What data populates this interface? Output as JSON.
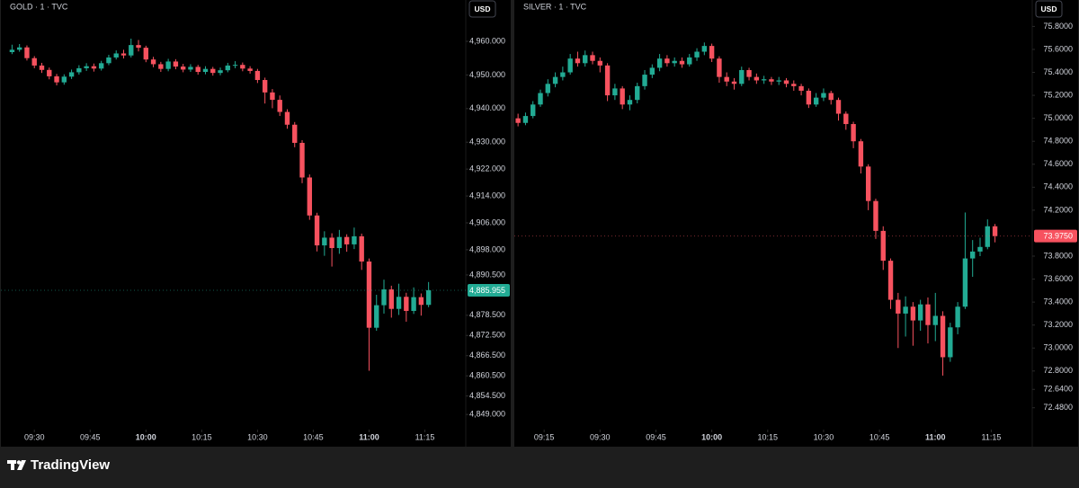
{
  "brand": "TradingView",
  "chart_data": [
    {
      "type": "candlestick",
      "title": "GOLD · 1 · TVC",
      "currency": "USD",
      "up_color": "#22ab94",
      "down_color": "#f7525f",
      "xlim": [
        "09:21",
        "11:26"
      ],
      "xticks": [
        "09:30",
        "09:45",
        "10:00",
        "10:15",
        "10:30",
        "10:45",
        "11:00",
        "11:15"
      ],
      "ylim": [
        4844.5,
        4972.3
      ],
      "yticks": [
        {
          "value": 4960,
          "label": "4,960.000"
        },
        {
          "value": 4950,
          "label": "4,950.000"
        },
        {
          "value": 4940,
          "label": "4,940.000"
        },
        {
          "value": 4930,
          "label": "4,930.000"
        },
        {
          "value": 4922,
          "label": "4,922.000"
        },
        {
          "value": 4914,
          "label": "4,914.000"
        },
        {
          "value": 4906,
          "label": "4,906.000"
        },
        {
          "value": 4898,
          "label": "4,898.000"
        },
        {
          "value": 4890.5,
          "label": "4,890.500"
        },
        {
          "value": 4878.5,
          "label": "4,878.500"
        },
        {
          "value": 4872.5,
          "label": "4,872.500"
        },
        {
          "value": 4866.5,
          "label": "4,866.500"
        },
        {
          "value": 4860.5,
          "label": "4,860.500"
        },
        {
          "value": 4854.5,
          "label": "4,854.500"
        },
        {
          "value": 4849,
          "label": "4,849.000"
        }
      ],
      "last_price": {
        "value": 4885.955,
        "label": "4,885.955"
      },
      "x": [
        "09:24",
        "09:26",
        "09:28",
        "09:30",
        "09:32",
        "09:34",
        "09:36",
        "09:38",
        "09:40",
        "09:42",
        "09:44",
        "09:46",
        "09:48",
        "09:50",
        "09:52",
        "09:54",
        "09:56",
        "09:58",
        "10:00",
        "10:02",
        "10:04",
        "10:06",
        "10:08",
        "10:10",
        "10:12",
        "10:14",
        "10:16",
        "10:18",
        "10:20",
        "10:22",
        "10:24",
        "10:26",
        "10:28",
        "10:30",
        "10:32",
        "10:34",
        "10:36",
        "10:38",
        "10:40",
        "10:42",
        "10:44",
        "10:46",
        "10:48",
        "10:50",
        "10:52",
        "10:54",
        "10:56",
        "10:58",
        "11:00",
        "11:02",
        "11:04",
        "11:06",
        "11:08",
        "11:10",
        "11:12",
        "11:14",
        "11:16"
      ],
      "open": [
        4956.8,
        4957.5,
        4958.2,
        4955.0,
        4952.8,
        4951.5,
        4949.6,
        4947.8,
        4949.5,
        4950.8,
        4952.0,
        4952.6,
        4951.9,
        4953.5,
        4955.2,
        4956.4,
        4955.8,
        4958.9,
        4958.1,
        4954.6,
        4953.2,
        4951.8,
        4954.0,
        4952.5,
        4951.6,
        4952.4,
        4950.9,
        4951.8,
        4950.6,
        4951.4,
        4952.8,
        4953.0,
        4951.9,
        4951.2,
        4948.5,
        4944.8,
        4942.6,
        4939.0,
        4935.2,
        4929.8,
        4919.5,
        4908.2,
        4899.3,
        4901.6,
        4898.5,
        4901.8,
        4899.6,
        4902.0,
        4894.5,
        4874.8,
        4881.5,
        4886.2,
        4880.4,
        4884.0,
        4879.8,
        4883.9,
        4881.6
      ],
      "high": [
        4959.0,
        4959.2,
        4958.8,
        4955.6,
        4953.6,
        4952.2,
        4950.3,
        4950.2,
        4951.6,
        4952.9,
        4953.5,
        4953.4,
        4954.2,
        4956.0,
        4957.3,
        4957.5,
        4960.8,
        4960.4,
        4958.7,
        4955.4,
        4953.9,
        4954.8,
        4954.7,
        4953.3,
        4953.2,
        4953.0,
        4952.6,
        4952.4,
        4952.2,
        4953.6,
        4954.1,
        4953.7,
        4952.6,
        4951.8,
        4949.2,
        4945.8,
        4943.9,
        4939.8,
        4936.0,
        4930.6,
        4920.4,
        4909.0,
        4903.5,
        4902.9,
        4903.9,
        4902.6,
        4904.6,
        4902.8,
        4895.4,
        4884.6,
        4889.1,
        4887.3,
        4887.9,
        4885.2,
        4886.8,
        4885.0,
        4888.4
      ],
      "low": [
        4956.2,
        4956.9,
        4954.3,
        4952.0,
        4950.6,
        4948.7,
        4946.9,
        4947.1,
        4948.8,
        4950.1,
        4951.2,
        4951.0,
        4951.3,
        4952.9,
        4954.6,
        4954.9,
        4955.2,
        4957.0,
        4953.8,
        4952.3,
        4950.9,
        4951.1,
        4951.7,
        4950.8,
        4950.9,
        4950.1,
        4950.2,
        4949.8,
        4949.9,
        4950.8,
        4952.0,
        4951.1,
        4950.4,
        4947.6,
        4941.5,
        4940.1,
        4937.8,
        4934.0,
        4928.5,
        4917.8,
        4906.9,
        4897.5,
        4896.2,
        4893.0,
        4896.8,
        4897.4,
        4898.2,
        4892.0,
        4862.0,
        4873.9,
        4879.0,
        4877.8,
        4878.6,
        4876.6,
        4878.9,
        4878.4,
        4880.9
      ],
      "close": [
        4957.5,
        4958.2,
        4955.0,
        4952.8,
        4951.5,
        4949.6,
        4947.8,
        4949.5,
        4950.8,
        4952.0,
        4952.6,
        4951.9,
        4953.5,
        4955.2,
        4956.4,
        4955.8,
        4958.9,
        4958.1,
        4954.6,
        4953.2,
        4951.8,
        4954.0,
        4952.5,
        4951.6,
        4952.4,
        4950.9,
        4951.8,
        4950.6,
        4951.4,
        4952.8,
        4953.0,
        4951.9,
        4951.2,
        4948.5,
        4944.8,
        4942.6,
        4939.0,
        4935.2,
        4929.8,
        4919.5,
        4908.2,
        4899.3,
        4901.6,
        4898.5,
        4901.8,
        4899.6,
        4902.0,
        4894.5,
        4874.8,
        4881.5,
        4886.2,
        4880.4,
        4884.0,
        4879.8,
        4883.9,
        4881.6,
        4885.955
      ]
    },
    {
      "type": "candlestick",
      "title": "SILVER · 1 · TVC",
      "currency": "USD",
      "up_color": "#22ab94",
      "down_color": "#f7525f",
      "xlim": [
        "09:07",
        "11:26"
      ],
      "xticks": [
        "09:15",
        "09:30",
        "09:45",
        "10:00",
        "10:15",
        "10:30",
        "10:45",
        "11:00",
        "11:15"
      ],
      "ylim": [
        72.29,
        76.03
      ],
      "yticks": [
        {
          "value": 75.8,
          "label": "75.8000"
        },
        {
          "value": 75.6,
          "label": "75.6000"
        },
        {
          "value": 75.4,
          "label": "75.4000"
        },
        {
          "value": 75.2,
          "label": "75.2000"
        },
        {
          "value": 75,
          "label": "75.0000"
        },
        {
          "value": 74.8,
          "label": "74.8000"
        },
        {
          "value": 74.6,
          "label": "74.6000"
        },
        {
          "value": 74.4,
          "label": "74.4000"
        },
        {
          "value": 74.2,
          "label": "74.2000"
        },
        {
          "value": 73.8,
          "label": "73.8000"
        },
        {
          "value": 73.6,
          "label": "73.6000"
        },
        {
          "value": 73.4,
          "label": "73.4000"
        },
        {
          "value": 73.2,
          "label": "73.2000"
        },
        {
          "value": 73,
          "label": "73.0000"
        },
        {
          "value": 72.8,
          "label": "72.8000"
        },
        {
          "value": 72.64,
          "label": "72.6400"
        },
        {
          "value": 72.48,
          "label": "72.4800"
        }
      ],
      "last_price": {
        "value": 73.975,
        "label": "73.9750"
      },
      "x": [
        "09:08",
        "09:10",
        "09:12",
        "09:14",
        "09:16",
        "09:18",
        "09:20",
        "09:22",
        "09:24",
        "09:26",
        "09:28",
        "09:30",
        "09:32",
        "09:34",
        "09:36",
        "09:38",
        "09:40",
        "09:42",
        "09:44",
        "09:46",
        "09:48",
        "09:50",
        "09:52",
        "09:54",
        "09:56",
        "09:58",
        "10:00",
        "10:02",
        "10:04",
        "10:06",
        "10:08",
        "10:10",
        "10:12",
        "10:14",
        "10:16",
        "10:18",
        "10:20",
        "10:22",
        "10:24",
        "10:26",
        "10:28",
        "10:30",
        "10:32",
        "10:34",
        "10:36",
        "10:38",
        "10:40",
        "10:42",
        "10:44",
        "10:46",
        "10:48",
        "10:50",
        "10:52",
        "10:54",
        "10:56",
        "10:58",
        "11:00",
        "11:02",
        "11:04",
        "11:06",
        "11:08",
        "11:10",
        "11:12",
        "11:14",
        "11:16"
      ],
      "open": [
        75.0,
        74.96,
        75.02,
        75.12,
        75.22,
        75.3,
        75.36,
        75.4,
        75.52,
        75.48,
        75.55,
        75.5,
        75.46,
        75.2,
        75.26,
        75.12,
        75.16,
        75.28,
        75.38,
        75.44,
        75.52,
        75.48,
        75.5,
        75.47,
        75.53,
        75.58,
        75.63,
        75.52,
        75.36,
        75.32,
        75.3,
        75.42,
        75.36,
        75.33,
        75.34,
        75.32,
        75.33,
        75.3,
        75.28,
        75.24,
        75.12,
        75.18,
        75.22,
        75.16,
        75.04,
        74.95,
        74.8,
        74.58,
        74.28,
        74.02,
        73.76,
        73.42,
        73.3,
        73.36,
        73.24,
        73.38,
        73.2,
        73.28,
        72.92,
        73.18,
        73.36,
        73.78,
        73.84,
        73.88,
        74.06
      ],
      "high": [
        75.04,
        75.05,
        75.15,
        75.25,
        75.34,
        75.4,
        75.45,
        75.56,
        75.58,
        75.59,
        75.58,
        75.53,
        75.48,
        75.3,
        75.28,
        75.2,
        75.31,
        75.42,
        75.47,
        75.56,
        75.55,
        75.53,
        75.53,
        75.56,
        75.61,
        75.66,
        75.65,
        75.54,
        75.4,
        75.35,
        75.45,
        75.44,
        75.39,
        75.37,
        75.36,
        75.36,
        75.35,
        75.33,
        75.3,
        75.26,
        75.22,
        75.26,
        75.24,
        75.18,
        75.06,
        74.97,
        74.82,
        74.6,
        74.3,
        74.06,
        73.78,
        73.48,
        73.45,
        73.4,
        73.42,
        73.44,
        73.48,
        73.32,
        73.22,
        73.4,
        74.18,
        73.94,
        73.96,
        74.12,
        74.08
      ],
      "low": [
        74.93,
        74.94,
        75.0,
        75.1,
        75.19,
        75.27,
        75.33,
        75.38,
        75.45,
        75.45,
        75.47,
        75.4,
        75.15,
        75.16,
        75.08,
        75.07,
        75.13,
        75.25,
        75.35,
        75.41,
        75.45,
        75.45,
        75.44,
        75.45,
        75.5,
        75.55,
        75.49,
        75.31,
        75.28,
        75.25,
        75.28,
        75.33,
        75.3,
        75.3,
        75.29,
        75.29,
        75.27,
        75.24,
        75.2,
        75.09,
        75.1,
        75.15,
        75.12,
        74.98,
        74.9,
        74.74,
        74.52,
        74.2,
        73.95,
        73.68,
        73.34,
        73.0,
        73.1,
        73.02,
        73.15,
        73.04,
        73.06,
        72.76,
        72.88,
        73.12,
        73.34,
        73.62,
        73.8,
        73.86,
        73.92
      ],
      "close": [
        74.96,
        75.02,
        75.12,
        75.22,
        75.3,
        75.36,
        75.4,
        75.52,
        75.48,
        75.55,
        75.5,
        75.46,
        75.2,
        75.26,
        75.12,
        75.16,
        75.28,
        75.38,
        75.44,
        75.52,
        75.48,
        75.5,
        75.47,
        75.53,
        75.58,
        75.63,
        75.52,
        75.36,
        75.32,
        75.3,
        75.42,
        75.36,
        75.33,
        75.34,
        75.32,
        75.33,
        75.3,
        75.28,
        75.24,
        75.12,
        75.18,
        75.22,
        75.16,
        75.04,
        74.95,
        74.8,
        74.58,
        74.28,
        74.02,
        73.76,
        73.42,
        73.3,
        73.36,
        73.24,
        73.38,
        73.2,
        73.28,
        72.92,
        73.18,
        73.36,
        73.78,
        73.84,
        73.88,
        74.06,
        73.975
      ]
    }
  ]
}
